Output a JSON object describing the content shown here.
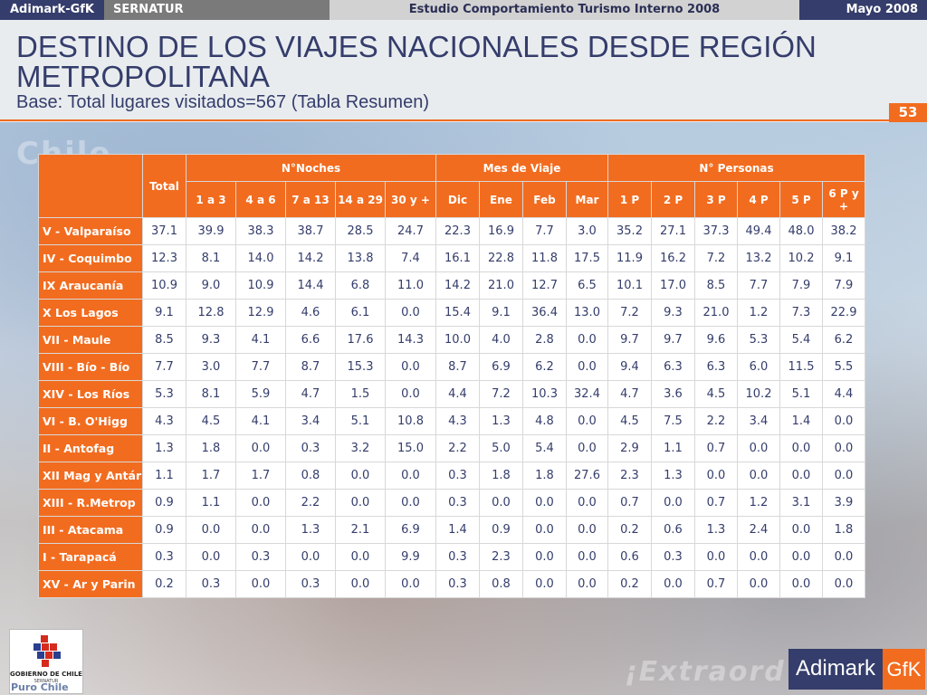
{
  "topbar": {
    "brand": "Adimark-GfK",
    "client": "SERNATUR",
    "study": "Estudio Comportamiento Turismo Interno 2008",
    "date": "Mayo 2008"
  },
  "header": {
    "title": "DESTINO DE LOS VIAJES NACIONALES DESDE REGIÓN METROPOLITANA",
    "subtitle": "Base: Total lugares visitados=567 (Tabla Resumen)",
    "page_number": "53"
  },
  "table": {
    "total_header": "Total",
    "groups": [
      "N°Noches",
      "Mes de Viaje",
      "N° Personas"
    ],
    "subheaders": [
      "1 a 3",
      "4 a 6",
      "7 a 13",
      "14  a 29",
      "30 y +",
      "Dic",
      "Ene",
      "Feb",
      "Mar",
      "1 P",
      "2 P",
      "3 P",
      "4 P",
      "5 P",
      "6 P y +"
    ],
    "rows": [
      {
        "region": "V - Valparaíso",
        "values": [
          "37.1",
          "39.9",
          "38.3",
          "38.7",
          "28.5",
          "24.7",
          "22.3",
          "16.9",
          "7.7",
          "3.0",
          "35.2",
          "27.1",
          "37.3",
          "49.4",
          "48.0",
          "38.2"
        ]
      },
      {
        "region": "IV - Coquimbo",
        "values": [
          "12.3",
          "8.1",
          "14.0",
          "14.2",
          "13.8",
          "7.4",
          "16.1",
          "22.8",
          "11.8",
          "17.5",
          "11.9",
          "16.2",
          "7.2",
          "13.2",
          "10.2",
          "9.1"
        ]
      },
      {
        "region": "IX Araucanía",
        "values": [
          "10.9",
          "9.0",
          "10.9",
          "14.4",
          "6.8",
          "11.0",
          "14.2",
          "21.0",
          "12.7",
          "6.5",
          "10.1",
          "17.0",
          "8.5",
          "7.7",
          "7.9",
          "7.9"
        ]
      },
      {
        "region": "X Los Lagos",
        "values": [
          "9.1",
          "12.8",
          "12.9",
          "4.6",
          "6.1",
          "0.0",
          "15.4",
          "9.1",
          "36.4",
          "13.0",
          "7.2",
          "9.3",
          "21.0",
          "1.2",
          "7.3",
          "22.9"
        ]
      },
      {
        "region": "VII - Maule",
        "values": [
          "8.5",
          "9.3",
          "4.1",
          "6.6",
          "17.6",
          "14.3",
          "10.0",
          "4.0",
          "2.8",
          "0.0",
          "9.7",
          "9.7",
          "9.6",
          "5.3",
          "5.4",
          "6.2"
        ]
      },
      {
        "region": "VIII - Bío - Bío",
        "values": [
          "7.7",
          "3.0",
          "7.7",
          "8.7",
          "15.3",
          "0.0",
          "8.7",
          "6.9",
          "6.2",
          "0.0",
          "9.4",
          "6.3",
          "6.3",
          "6.0",
          "11.5",
          "5.5"
        ]
      },
      {
        "region": "XIV - Los Ríos",
        "values": [
          "5.3",
          "8.1",
          "5.9",
          "4.7",
          "1.5",
          "0.0",
          "4.4",
          "7.2",
          "10.3",
          "32.4",
          "4.7",
          "3.6",
          "4.5",
          "10.2",
          "5.1",
          "4.4"
        ]
      },
      {
        "region": "VI - B. O'Higg",
        "values": [
          "4.3",
          "4.5",
          "4.1",
          "3.4",
          "5.1",
          "10.8",
          "4.3",
          "1.3",
          "4.8",
          "0.0",
          "4.5",
          "7.5",
          "2.2",
          "3.4",
          "1.4",
          "0.0"
        ]
      },
      {
        "region": "II - Antofag",
        "values": [
          "1.3",
          "1.8",
          "0.0",
          "0.3",
          "3.2",
          "15.0",
          "2.2",
          "5.0",
          "5.4",
          "0.0",
          "2.9",
          "1.1",
          "0.7",
          "0.0",
          "0.0",
          "0.0"
        ]
      },
      {
        "region": "XII Mag y Antár",
        "values": [
          "1.1",
          "1.7",
          "1.7",
          "0.8",
          "0.0",
          "0.0",
          "0.3",
          "1.8",
          "1.8",
          "27.6",
          "2.3",
          "1.3",
          "0.0",
          "0.0",
          "0.0",
          "0.0"
        ]
      },
      {
        "region": "XIII - R.Metrop",
        "values": [
          "0.9",
          "1.1",
          "0.0",
          "2.2",
          "0.0",
          "0.0",
          "0.3",
          "0.0",
          "0.0",
          "0.0",
          "0.7",
          "0.0",
          "0.7",
          "1.2",
          "3.1",
          "3.9"
        ]
      },
      {
        "region": "III - Atacama",
        "values": [
          "0.9",
          "0.0",
          "0.0",
          "1.3",
          "2.1",
          "6.9",
          "1.4",
          "0.9",
          "0.0",
          "0.0",
          "0.2",
          "0.6",
          "1.3",
          "2.4",
          "0.0",
          "1.8"
        ]
      },
      {
        "region": "I - Tarapacá",
        "values": [
          "0.3",
          "0.0",
          "0.3",
          "0.0",
          "0.0",
          "9.9",
          "0.3",
          "2.3",
          "0.0",
          "0.0",
          "0.6",
          "0.3",
          "0.0",
          "0.0",
          "0.0",
          "0.0"
        ]
      },
      {
        "region": "XV - Ar y Parin",
        "values": [
          "0.2",
          "0.3",
          "0.0",
          "0.3",
          "0.0",
          "0.0",
          "0.3",
          "0.8",
          "0.0",
          "0.0",
          "0.2",
          "0.0",
          "0.7",
          "0.0",
          "0.0",
          "0.0"
        ]
      }
    ]
  },
  "footer": {
    "gov_logo_text": "GOBIERNO DE CHILE",
    "gov_logo_sub": "SERNATUR",
    "slogan": "Puro Chile",
    "logo_name": "Adimark",
    "logo_gfk": "GfK",
    "bg_word_left": "Chile",
    "bg_word_bottom": "¡Extraord"
  },
  "colors": {
    "accent": "#f26c1f",
    "navy": "#343d6b"
  }
}
